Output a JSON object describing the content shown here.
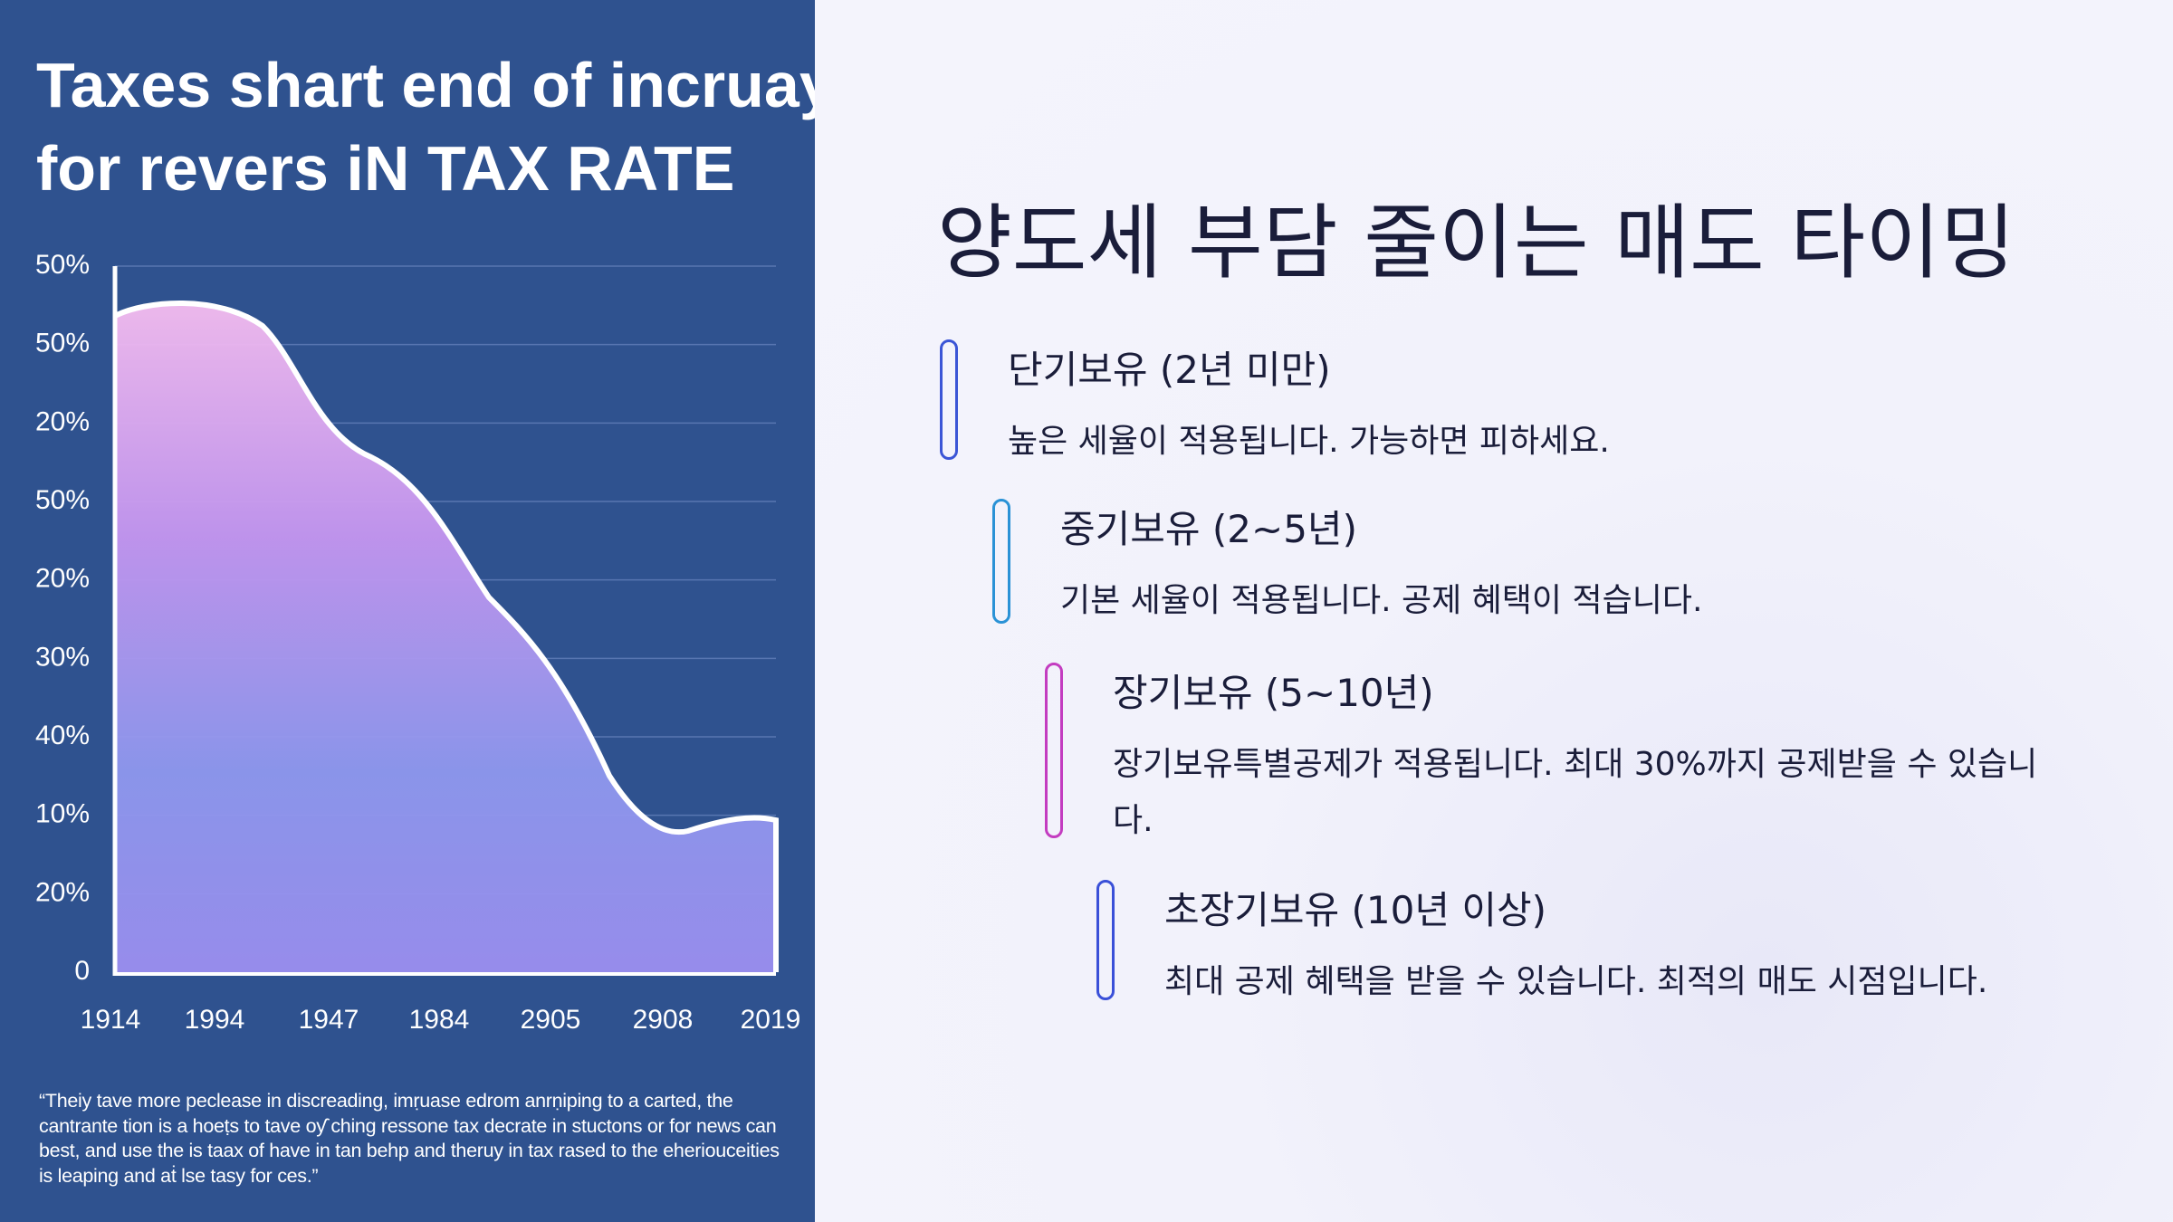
{
  "chart_image": {
    "title_lines": [
      "Taxes shart end of incruay",
      "for revers iN TAX RATE"
    ],
    "y_labels": [
      "50%",
      "50%",
      "20%",
      "50%",
      "20%",
      "30%",
      "40%",
      "10%",
      "20%",
      "0"
    ],
    "x_labels": [
      "1914",
      "1994",
      "1947",
      "1984",
      "2905",
      "2908",
      "2019"
    ],
    "caption": "“Theiy tave more peclease in discreading, imṛuase edrom anrṇiping to a carted, the cantrante tion is a hoeṭs to tave oƴ ching ressone tax decrate in stuctons or for news can best, and use the is taax of have in tan behp and theruy in tax rased to the eheriouceities is leaping and aṫ lse tasy for ces.”"
  },
  "content": {
    "heading": "양도세 부담 줄이는 매도 타이밍",
    "items": [
      {
        "title": "단기보유 (2년 미만)",
        "description": "높은 세율이 적용됩니다. 가능하면 피하세요."
      },
      {
        "title": "중기보유 (2~5년)",
        "description": "기본 세율이 적용됩니다. 공제 혜택이 적습니다."
      },
      {
        "title": "장기보유 (5~10년)",
        "description": "장기보유특별공제가 적용됩니다. 최대 30%까지 공제받을 수 있습니다."
      },
      {
        "title": "초장기보유 (10년 이상)",
        "description": "최대 공제 혜택을 받을 수 있습니다. 최적의 매도 시점입니다."
      }
    ]
  }
}
